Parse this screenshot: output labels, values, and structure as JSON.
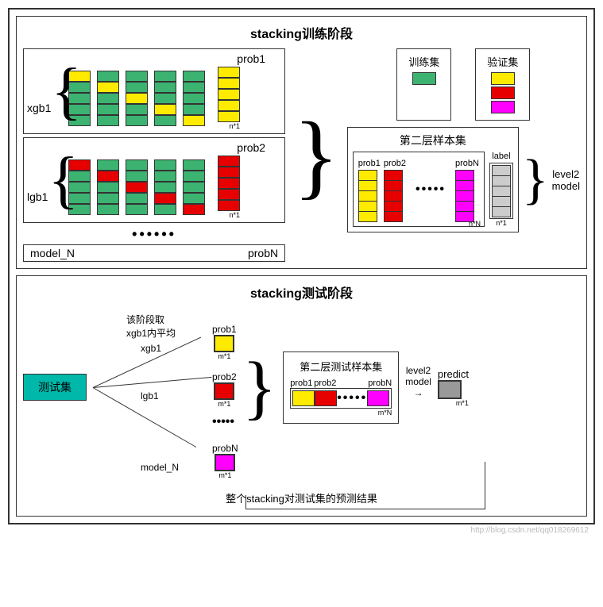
{
  "colors": {
    "green": "#3cb371",
    "yellow": "#ffeb00",
    "red": "#e60000",
    "magenta": "#ff00ff",
    "gray": "#cccccc",
    "teal": "#00b8a9",
    "darkgray": "#999999"
  },
  "training": {
    "title": "stacking训练阶段",
    "xgb": {
      "label": "xgb1",
      "prob_label": "prob1",
      "folds": [
        [
          "yellow",
          "green",
          "green",
          "green",
          "green"
        ],
        [
          "green",
          "yellow",
          "green",
          "green",
          "green"
        ],
        [
          "green",
          "green",
          "yellow",
          "green",
          "green"
        ],
        [
          "green",
          "green",
          "green",
          "yellow",
          "green"
        ],
        [
          "green",
          "green",
          "green",
          "green",
          "yellow"
        ]
      ],
      "output_color": "yellow",
      "output_rows": 5,
      "output_dim": "n*1"
    },
    "lgb": {
      "label": "lgb1",
      "prob_label": "prob2",
      "folds": [
        [
          "red",
          "green",
          "green",
          "green",
          "green"
        ],
        [
          "green",
          "red",
          "green",
          "green",
          "green"
        ],
        [
          "green",
          "green",
          "red",
          "green",
          "green"
        ],
        [
          "green",
          "green",
          "green",
          "red",
          "green"
        ],
        [
          "green",
          "green",
          "green",
          "green",
          "red"
        ]
      ],
      "output_color": "red",
      "output_rows": 5,
      "output_dim": "n*1"
    },
    "model_n": {
      "label": "model_N",
      "prob_label": "probN"
    },
    "legend_train": {
      "title": "训练集",
      "colors": [
        "green"
      ]
    },
    "legend_valid": {
      "title": "验证集",
      "colors": [
        "yellow",
        "red",
        "magenta"
      ]
    },
    "level2": {
      "title": "第二层样本集",
      "columns": [
        {
          "label": "prob1",
          "color": "yellow",
          "rows": 5
        },
        {
          "label": "prob2",
          "color": "red",
          "rows": 5
        },
        {
          "label": "probN",
          "color": "magenta",
          "rows": 5
        }
      ],
      "label_col": {
        "label": "label",
        "color": "gray",
        "rows": 5
      },
      "dim_main": "n*N",
      "dim_label": "n*1",
      "side_label": "level2\nmodel"
    }
  },
  "testing": {
    "title": "stacking测试阶段",
    "test_set": "测试集",
    "note": "该阶段取\nxgb1内平均",
    "models": [
      {
        "name": "xgb1",
        "prob": "prob1",
        "color": "yellow",
        "dim": "m*1"
      },
      {
        "name": "lgb1",
        "prob": "prob2",
        "color": "red",
        "dim": "m*1"
      },
      {
        "name": "model_N",
        "prob": "probN",
        "color": "magenta",
        "dim": "m*1"
      }
    ],
    "level2": {
      "title": "第二层测试样本集",
      "cells": [
        {
          "label": "prob1",
          "color": "yellow"
        },
        {
          "label": "prob2",
          "color": "red"
        },
        {
          "label": "probN",
          "color": "magenta"
        }
      ],
      "dim": "m*N",
      "model_label": "level2\nmodel"
    },
    "predict": {
      "label": "predict",
      "dim": "m*1"
    },
    "bottom_note": "整个stacking对测试集的预测结果"
  },
  "watermark": "http://blog.csdn.net/qq018269612"
}
